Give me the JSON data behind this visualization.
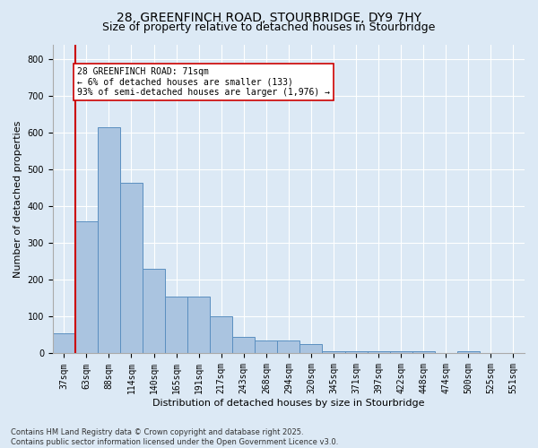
{
  "title_line1": "28, GREENFINCH ROAD, STOURBRIDGE, DY9 7HY",
  "title_line2": "Size of property relative to detached houses in Stourbridge",
  "xlabel": "Distribution of detached houses by size in Stourbridge",
  "ylabel": "Number of detached properties",
  "footnote": "Contains HM Land Registry data © Crown copyright and database right 2025.\nContains public sector information licensed under the Open Government Licence v3.0.",
  "categories": [
    "37sqm",
    "63sqm",
    "88sqm",
    "114sqm",
    "140sqm",
    "165sqm",
    "191sqm",
    "217sqm",
    "243sqm",
    "268sqm",
    "294sqm",
    "320sqm",
    "345sqm",
    "371sqm",
    "397sqm",
    "422sqm",
    "448sqm",
    "474sqm",
    "500sqm",
    "525sqm",
    "551sqm"
  ],
  "values": [
    55,
    360,
    615,
    465,
    230,
    155,
    155,
    100,
    45,
    35,
    35,
    25,
    5,
    5,
    5,
    5,
    5,
    0,
    5,
    0,
    0
  ],
  "bar_color": "#aac4e0",
  "bar_edge_color": "#5a8fc0",
  "vline_color": "#cc0000",
  "annotation_text": "28 GREENFINCH ROAD: 71sqm\n← 6% of detached houses are smaller (133)\n93% of semi-detached houses are larger (1,976) →",
  "annotation_box_color": "#ffffff",
  "annotation_box_edge": "#cc0000",
  "ylim": [
    0,
    840
  ],
  "yticks": [
    0,
    100,
    200,
    300,
    400,
    500,
    600,
    700,
    800
  ],
  "bg_color": "#dce9f5",
  "plot_bg_color": "#dce9f5",
  "grid_color": "#ffffff",
  "title_fontsize": 10,
  "subtitle_fontsize": 9,
  "axis_label_fontsize": 8,
  "tick_fontsize": 7
}
